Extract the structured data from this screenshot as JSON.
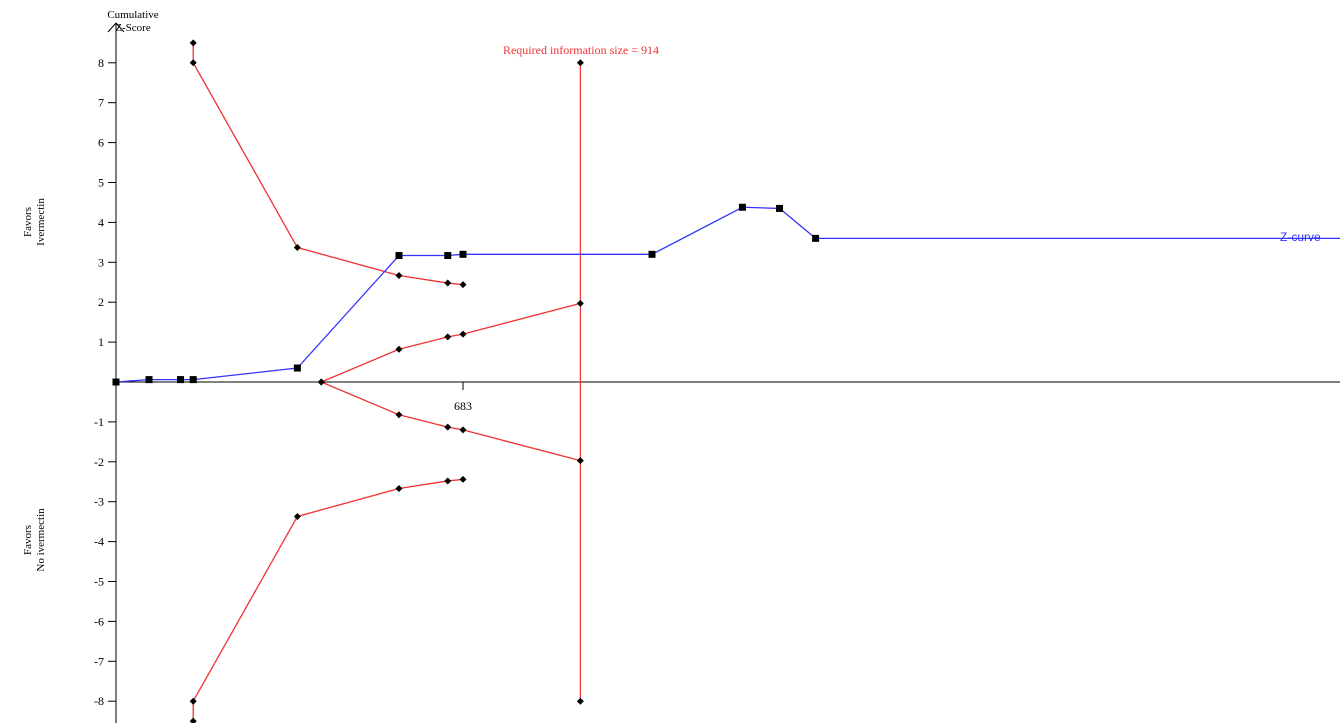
{
  "chart_data": {
    "type": "line",
    "y_title_line1": "Cumulative",
    "y_title_line2": "Z-Score",
    "ylim": [
      -8.5,
      8.5
    ],
    "y_ticks": [
      8,
      7,
      6,
      5,
      4,
      3,
      2,
      1,
      -1,
      -2,
      -3,
      -4,
      -5,
      -6,
      -7,
      -8
    ],
    "upper_label_line1": "Favors",
    "upper_label_line2": "Ivermectin",
    "lower_label_line1": "Favors",
    "lower_label_line2": "No ivermectin",
    "x_tick": {
      "value": 683,
      "label": "683"
    },
    "required_information_size": {
      "value": 914,
      "label": "Required information size = 914"
    },
    "zcurve_label": "Z-curve",
    "colors": {
      "z_curve": "#3333ff",
      "boundaries": "#ee3333",
      "axes": "#000000",
      "markers": "#000000"
    },
    "z_curve": {
      "x": [
        0,
        65,
        127,
        152,
        357,
        557,
        653,
        683,
        1055,
        1233,
        1306,
        1377,
        3750,
        3990,
        4060,
        4202,
        4339
      ],
      "y": [
        0,
        0.06,
        0.06,
        0.06,
        0.35,
        3.17,
        3.17,
        3.2,
        3.2,
        4.38,
        4.35,
        3.6,
        3.6,
        3.6,
        3.62,
        3.62,
        3.65
      ]
    },
    "monitoring_boundary_upper": {
      "x": [
        152,
        152,
        357,
        557,
        653,
        683
      ],
      "y": [
        8.5,
        8.0,
        3.37,
        2.67,
        2.48,
        2.44
      ]
    },
    "monitoring_boundary_lower": {
      "x": [
        152,
        152,
        357,
        557,
        653,
        683
      ],
      "y": [
        -8.5,
        -8.0,
        -3.37,
        -2.67,
        -2.48,
        -2.44
      ]
    },
    "futility_upper": {
      "x": [
        404,
        557,
        653,
        683,
        914
      ],
      "y": [
        0,
        0.82,
        1.13,
        1.2,
        1.97
      ]
    },
    "futility_lower": {
      "x": [
        404,
        557,
        653,
        683,
        914
      ],
      "y": [
        0,
        -0.82,
        -1.13,
        -1.2,
        -1.97
      ]
    }
  }
}
